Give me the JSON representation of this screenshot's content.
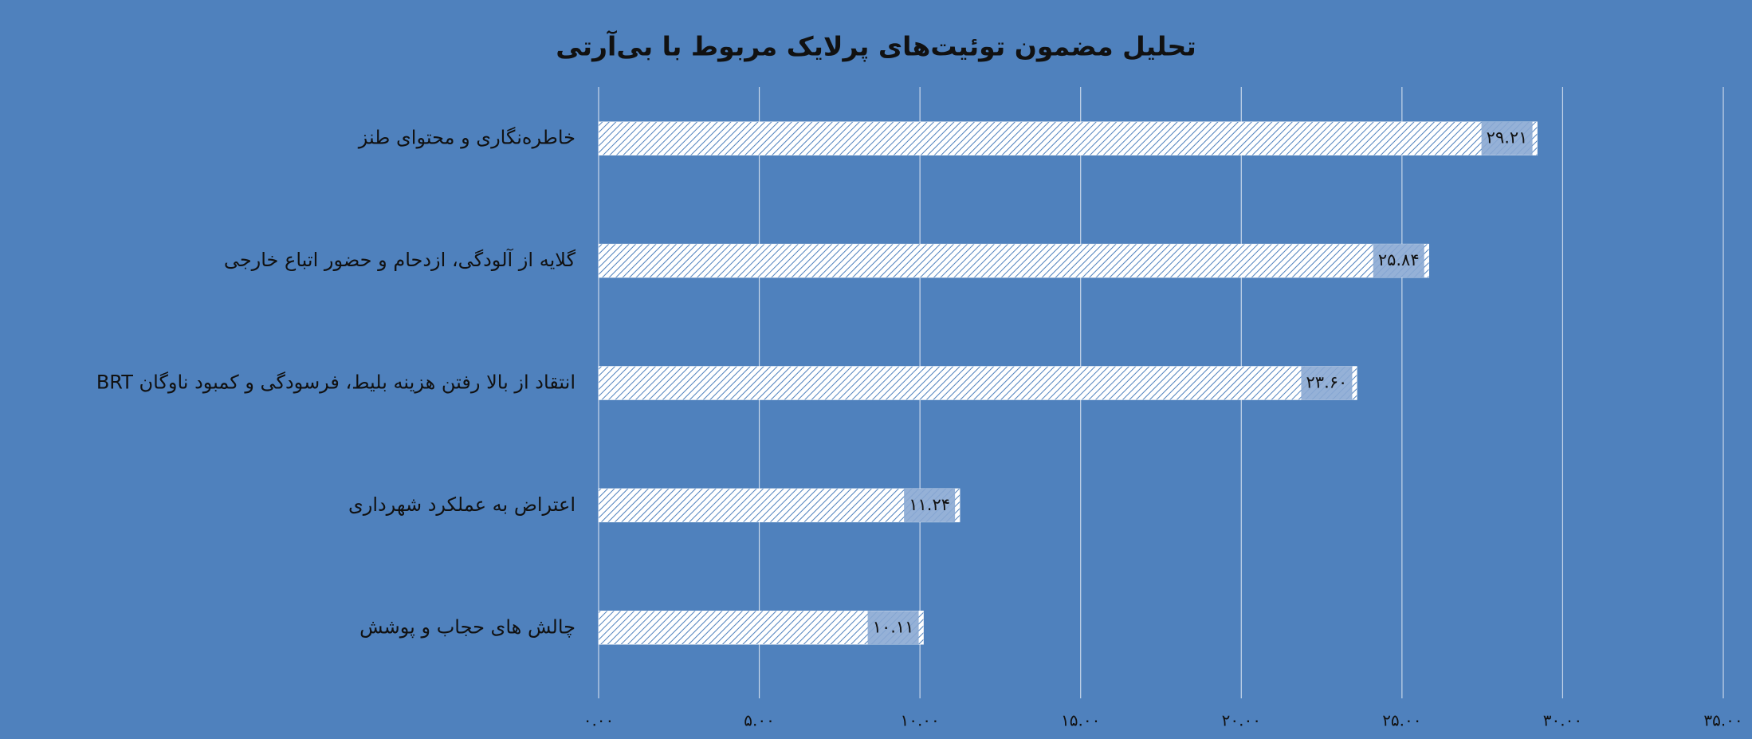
{
  "chart_data": {
    "type": "bar",
    "orientation": "horizontal",
    "title": "تحلیل مضمون توئیت‌های پرلایک مربوط با بی‌آرتی",
    "categories": [
      "خاطره‌نگاری و محتوای طنز",
      "گلایه از آلودگی، ازدحام و حضور اتباع خارجی",
      "انتقاد از بالا رفتن هزینه بلیط، فرسودگی و کمبود ناوگان BRT",
      "اعتراض به عملکرد شهرداری",
      "چالش های حجاب و پوشش"
    ],
    "values": [
      29.21,
      25.84,
      23.6,
      11.24,
      10.11
    ],
    "value_labels": [
      "۲۹.۲۱",
      "۲۵.۸۴",
      "۲۳.۶۰",
      "۱۱.۲۴",
      "۱۰.۱۱"
    ],
    "color": "#ffffff",
    "xlim": [
      0,
      35
    ],
    "xticks": [
      {
        "value": 0,
        "label": "۰.۰۰"
      },
      {
        "value": 5,
        "label": "۵.۰۰"
      },
      {
        "value": 10,
        "label": "۱۰.۰۰"
      },
      {
        "value": 15,
        "label": "۱۵.۰۰"
      },
      {
        "value": 20,
        "label": "۲۰.۰۰"
      },
      {
        "value": 25,
        "label": "۲۵.۰۰"
      },
      {
        "value": 30,
        "label": "۳۰.۰۰"
      },
      {
        "value": 35,
        "label": "۳۵.۰۰"
      }
    ],
    "grid": true
  }
}
